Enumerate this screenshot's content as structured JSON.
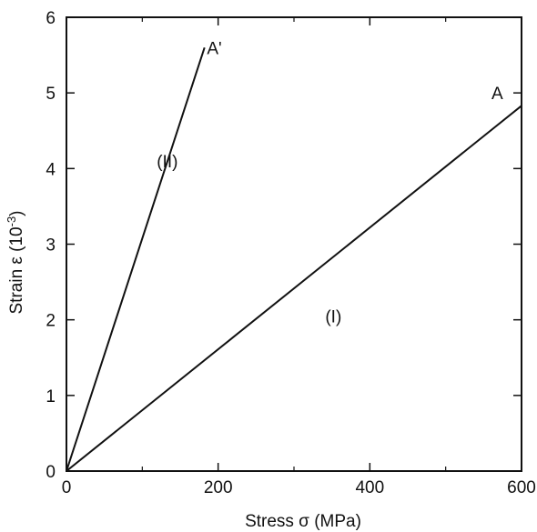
{
  "chart_data": {
    "type": "line",
    "xlabel": "Stress σ (MPa)",
    "ylabel_main": "Strain ε (10",
    "ylabel_exp": "-3",
    "ylabel_close": ")",
    "xlim": [
      0,
      600
    ],
    "ylim": [
      0,
      6
    ],
    "xticks_major": [
      0,
      200,
      400,
      600
    ],
    "xticks_minor": [
      100,
      300,
      500
    ],
    "yticks_major": [
      0,
      1,
      2,
      3,
      4,
      5,
      6
    ],
    "yticks_minor": [],
    "grid": false,
    "series": [
      {
        "x": [
          0,
          182
        ],
        "y": [
          0,
          5.6
        ]
      },
      {
        "x": [
          0,
          600
        ],
        "y": [
          0,
          4.83
        ]
      }
    ],
    "annotations": [
      {
        "text": "A'",
        "x": 195,
        "y": 5.6
      },
      {
        "text": "(II)",
        "x": 133,
        "y": 4.1
      },
      {
        "text": "A",
        "x": 568,
        "y": 5.0
      },
      {
        "text": "(I)",
        "x": 352,
        "y": 2.05
      }
    ],
    "colors": {
      "axis": "#111111",
      "line": "#111111"
    }
  }
}
